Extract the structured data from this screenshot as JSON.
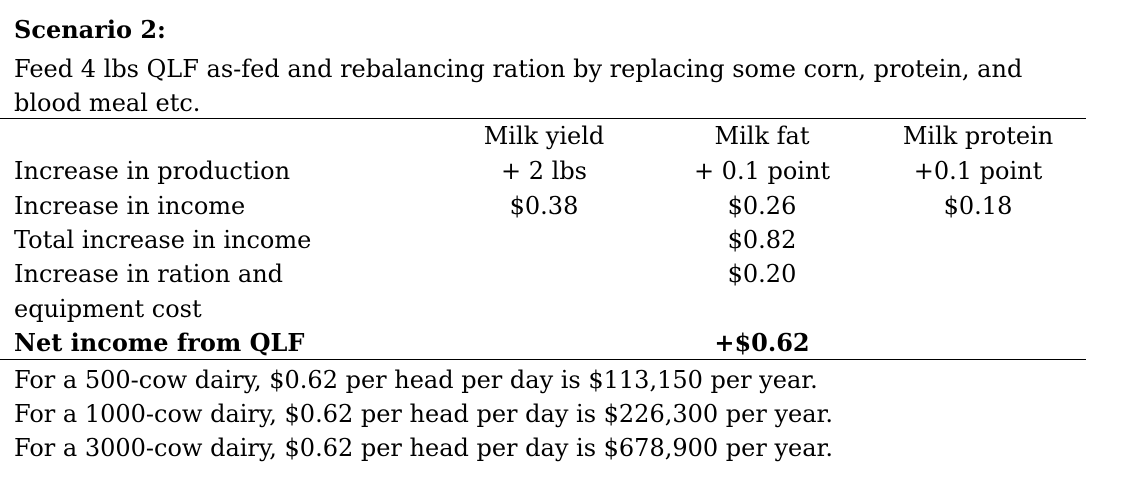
{
  "scenario": {
    "title": "Scenario 2:",
    "description_lines": [
      "Feed 4 lbs QLF as-fed and rebalancing ration by replacing some corn, protein, and",
      "blood meal etc."
    ]
  },
  "table": {
    "columns": [
      "Milk yield",
      "Milk fat",
      "Milk protein"
    ],
    "rows": [
      {
        "label": "Increase in production",
        "values": [
          "+ 2 lbs",
          "+ 0.1 point",
          "+0.1 point"
        ]
      },
      {
        "label": "Increase in income",
        "values": [
          "$0.38",
          "$0.26",
          "$0.18"
        ]
      },
      {
        "label": "Total increase in income",
        "value": "$0.82"
      },
      {
        "label_lines": [
          "Increase in ration and",
          "equipment cost"
        ],
        "value": "$0.20"
      },
      {
        "label": "Net income from QLF",
        "value": "+$0.62"
      }
    ]
  },
  "notes": [
    "For a 500-cow dairy, $0.62 per head per day is $113,150 per year.",
    "For a 1000-cow dairy, $0.62 per head per day is $226,300 per year.",
    "For a 3000-cow dairy, $0.62 per head per day is $678,900 per year."
  ]
}
